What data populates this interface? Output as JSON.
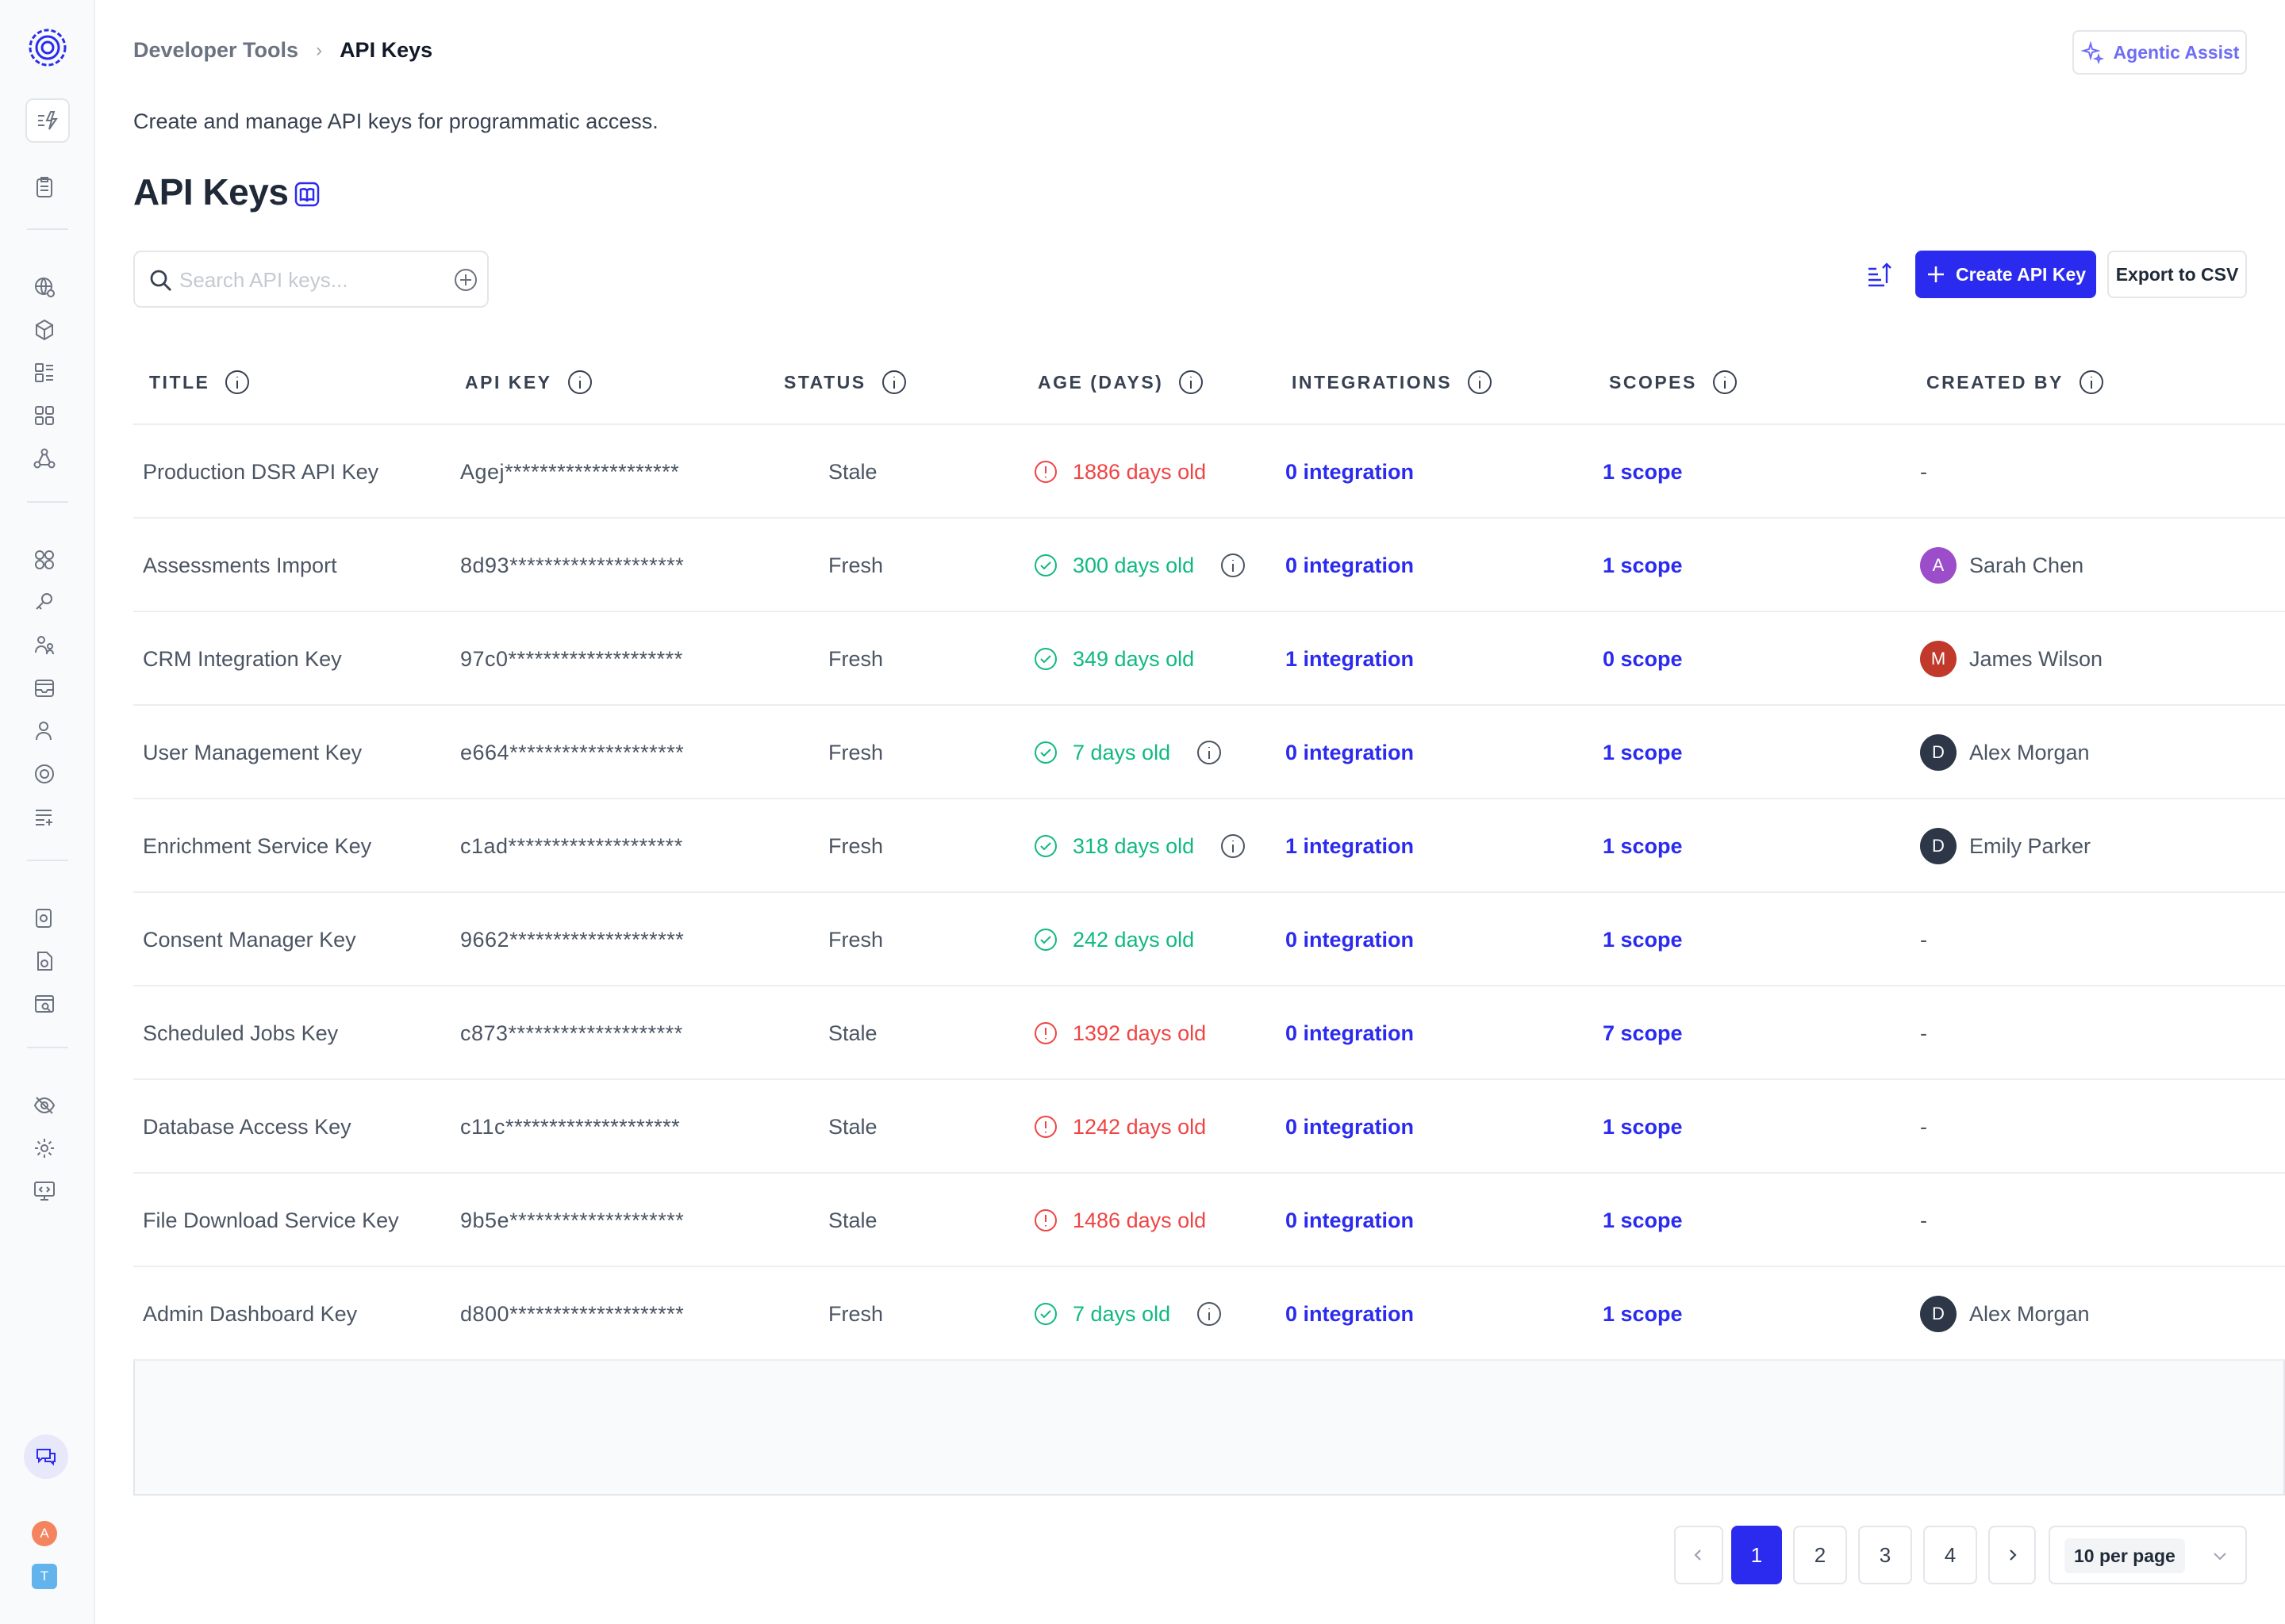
{
  "breadcrumb": {
    "parent": "Developer Tools",
    "separator": "›",
    "current": "API Keys"
  },
  "header": {
    "agentic_label": "Agentic Assist",
    "subtitle": "Create and manage API keys for programmatic access.",
    "title": "API Keys"
  },
  "toolbar": {
    "search_placeholder": "Search API keys...",
    "create_label": "Create API Key",
    "export_label": "Export to CSV"
  },
  "columns": [
    "TITLE",
    "API KEY",
    "STATUS",
    "AGE (DAYS)",
    "INTEGRATIONS",
    "SCOPES",
    "CREATED BY"
  ],
  "rows": [
    {
      "title": "Production DSR API Key",
      "key": "Agej********************",
      "status": "Stale",
      "age": "1886 days old",
      "state": "stale",
      "age_info": false,
      "integrations": "0 integration",
      "scopes": "1 scope",
      "created_by": "-"
    },
    {
      "title": "Assessments Import",
      "key": "8d93********************",
      "status": "Fresh",
      "age": "300 days old",
      "state": "fresh",
      "age_info": true,
      "integrations": "0 integration",
      "scopes": "1 scope",
      "created_by": "Sarah Chen",
      "avatar": "A",
      "avatar_color": "#9b4dca"
    },
    {
      "title": "CRM Integration Key",
      "key": "97c0********************",
      "status": "Fresh",
      "age": "349 days old",
      "state": "fresh",
      "age_info": false,
      "integrations": "1 integration",
      "scopes": "0 scope",
      "created_by": "James Wilson",
      "avatar": "M",
      "avatar_color": "#c0392b"
    },
    {
      "title": "User Management Key",
      "key": "e664********************",
      "status": "Fresh",
      "age": "7 days old",
      "state": "fresh",
      "age_info": true,
      "integrations": "0 integration",
      "scopes": "1 scope",
      "created_by": "Alex Morgan",
      "avatar": "D",
      "avatar_color": "#2d3748"
    },
    {
      "title": "Enrichment Service Key",
      "key": "c1ad********************",
      "status": "Fresh",
      "age": "318 days old",
      "state": "fresh",
      "age_info": true,
      "integrations": "1 integration",
      "scopes": "1 scope",
      "created_by": "Emily Parker",
      "avatar": "D",
      "avatar_color": "#2d3748"
    },
    {
      "title": "Consent Manager Key",
      "key": "9662********************",
      "status": "Fresh",
      "age": "242 days old",
      "state": "fresh",
      "age_info": false,
      "integrations": "0 integration",
      "scopes": "1 scope",
      "created_by": "-"
    },
    {
      "title": "Scheduled Jobs Key",
      "key": "c873********************",
      "status": "Stale",
      "age": "1392 days old",
      "state": "stale",
      "age_info": false,
      "integrations": "0 integration",
      "scopes": "7 scope",
      "created_by": "-"
    },
    {
      "title": "Database Access Key",
      "key": "c11c********************",
      "status": "Stale",
      "age": "1242 days old",
      "state": "stale",
      "age_info": false,
      "integrations": "0 integration",
      "scopes": "1 scope",
      "created_by": "-"
    },
    {
      "title": "File Download Service Key",
      "key": "9b5e********************",
      "status": "Stale",
      "age": "1486 days old",
      "state": "stale",
      "age_info": false,
      "integrations": "0 integration",
      "scopes": "1 scope",
      "created_by": "-"
    },
    {
      "title": "Admin Dashboard Key",
      "key": "d800********************",
      "status": "Fresh",
      "age": "7 days old",
      "state": "fresh",
      "age_info": true,
      "integrations": "0 integration",
      "scopes": "1 scope",
      "created_by": "Alex Morgan",
      "avatar": "D",
      "avatar_color": "#2d3748"
    }
  ],
  "pagination": {
    "pages": [
      "1",
      "2",
      "3",
      "4"
    ],
    "current": "1",
    "per_page": "10 per page"
  },
  "sidebar_users": [
    {
      "initial": "A",
      "color": "#f4845f"
    },
    {
      "initial": "T",
      "color": "#63b3ed"
    }
  ],
  "colors": {
    "accent": "#2b2bf0",
    "stale": "#ef4444",
    "fresh": "#10b981",
    "assist": "#6d6df5"
  }
}
